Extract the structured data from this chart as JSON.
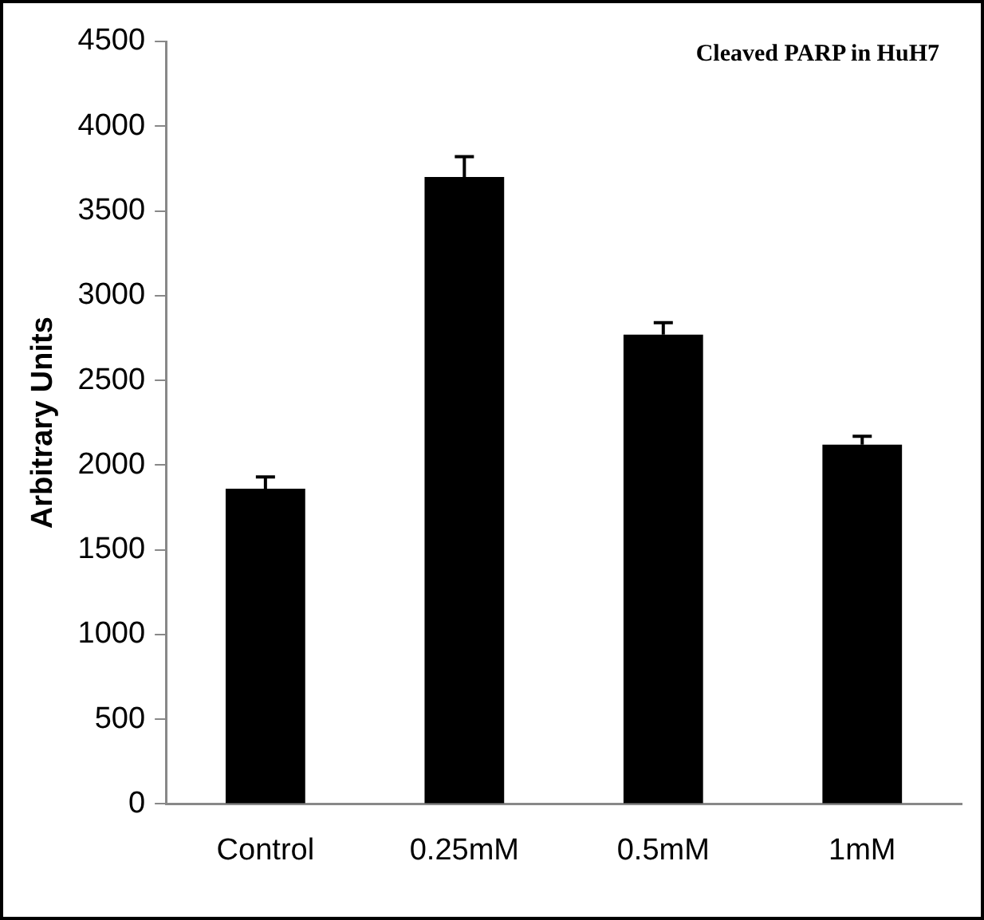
{
  "chart_data": {
    "type": "bar",
    "title": "Cleaved PARP in HuH7",
    "ylabel": "Arbitrary Units",
    "categories": [
      "Control",
      "0.25mM",
      "0.5mM",
      "1mM"
    ],
    "values": [
      1860,
      3700,
      2770,
      2120
    ],
    "errors": [
      [
        1860,
        1930
      ],
      [
        3700,
        3820
      ],
      [
        2770,
        2840
      ],
      [
        2120,
        2170
      ]
    ],
    "color": "#000000",
    "ylim": [
      0,
      4500
    ],
    "yticks": [
      0,
      500,
      1000,
      1500,
      2000,
      2500,
      3000,
      3500,
      4000,
      4500
    ],
    "grid": false,
    "legend": false
  }
}
